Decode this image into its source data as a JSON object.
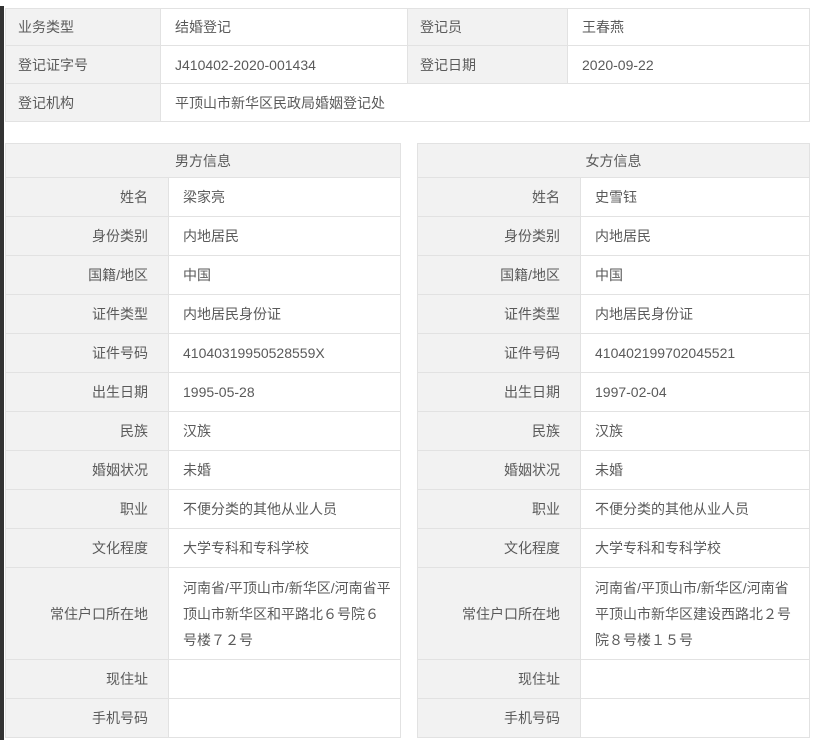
{
  "colors": {
    "label_bg": "#f2f2f2",
    "cell_bg": "#ffffff",
    "border": "#e2e2e2",
    "text": "#5a5a5a",
    "edge_bar": "#333333"
  },
  "registration": {
    "row1": {
      "label1": "业务类型",
      "value1": "结婚登记",
      "label2": "登记员",
      "value2": "王春燕"
    },
    "row2": {
      "label1": "登记证字号",
      "value1": "J410402-2020-001434",
      "label2": "登记日期",
      "value2": "2020-09-22"
    },
    "row3": {
      "label": "登记机构",
      "value": "平顶山市新华区民政局婚姻登记处"
    }
  },
  "male": {
    "title": "男方信息",
    "fields": [
      {
        "label": "姓名",
        "value": "梁家亮"
      },
      {
        "label": "身份类别",
        "value": "内地居民"
      },
      {
        "label": "国籍/地区",
        "value": "中国"
      },
      {
        "label": "证件类型",
        "value": "内地居民身份证"
      },
      {
        "label": "证件号码",
        "value": "41040319950528559X"
      },
      {
        "label": "出生日期",
        "value": "1995-05-28"
      },
      {
        "label": "民族",
        "value": "汉族"
      },
      {
        "label": "婚姻状况",
        "value": "未婚"
      },
      {
        "label": "职业",
        "value": "不便分类的其他从业人员"
      },
      {
        "label": "文化程度",
        "value": "大学专科和专科学校"
      },
      {
        "label": "常住户口所在地",
        "value": "河南省/平顶山市/新华区/河南省平顶山市新华区和平路北６号院６号楼７２号"
      },
      {
        "label": "现住址",
        "value": ""
      },
      {
        "label": "手机号码",
        "value": ""
      }
    ]
  },
  "female": {
    "title": "女方信息",
    "fields": [
      {
        "label": "姓名",
        "value": "史雪钰"
      },
      {
        "label": "身份类别",
        "value": "内地居民"
      },
      {
        "label": "国籍/地区",
        "value": "中国"
      },
      {
        "label": "证件类型",
        "value": "内地居民身份证"
      },
      {
        "label": "证件号码",
        "value": "410402199702045521"
      },
      {
        "label": "出生日期",
        "value": "1997-02-04"
      },
      {
        "label": "民族",
        "value": "汉族"
      },
      {
        "label": "婚姻状况",
        "value": "未婚"
      },
      {
        "label": "职业",
        "value": "不便分类的其他从业人员"
      },
      {
        "label": "文化程度",
        "value": "大学专科和专科学校"
      },
      {
        "label": "常住户口所在地",
        "value": "河南省/平顶山市/新华区/河南省平顶山市新华区建设西路北２号院８号楼１５号"
      },
      {
        "label": "现住址",
        "value": ""
      },
      {
        "label": "手机号码",
        "value": ""
      }
    ]
  }
}
